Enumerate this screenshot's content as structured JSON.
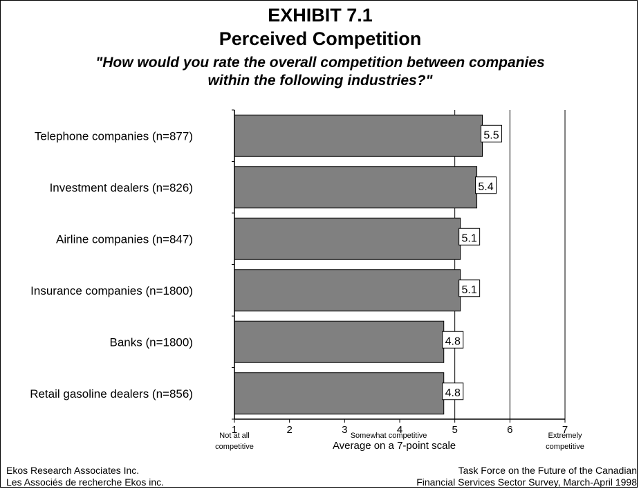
{
  "chart_data": {
    "type": "bar",
    "orientation": "horizontal",
    "title": "EXHIBIT 7.1",
    "subtitle": "Perceived Competition",
    "question_line1": "\"How would you rate the overall competition between companies",
    "question_line2": "within the following industries?\"",
    "categories": [
      "Telephone companies (n=877)",
      "Investment dealers (n=826)",
      "Airline companies (n=847)",
      "Insurance companies (n=1800)",
      "Banks (n=1800)",
      "Retail gasoline dealers (n=856)"
    ],
    "values": [
      5.5,
      5.4,
      5.1,
      5.1,
      4.8,
      4.8
    ],
    "data_labels": [
      "5.5",
      "5.4",
      "5.1",
      "5.1",
      "4.8",
      "4.8"
    ],
    "ticks": [
      "1",
      "2",
      "3",
      "4",
      "5",
      "6",
      "7"
    ],
    "xlim": [
      1,
      7
    ],
    "xlabel": "Average on a 7-point scale",
    "scale_anchors": {
      "low_line1": "Not at all",
      "low_line2": "competitive",
      "mid": "Somewhat competitive",
      "high_line1": "Extremely",
      "high_line2": "competitive"
    },
    "gridlines_at": [
      5,
      6,
      7
    ],
    "bar_color": "#808080",
    "grid": true,
    "legend": "none"
  },
  "footer": {
    "left_line1": "Ekos Research Associates Inc.",
    "left_line2": "Les Associés de recherche Ekos inc.",
    "right_line1": "Task Force on the Future of the Canadian",
    "right_line2": "Financial Services Sector Survey, March-April 1998"
  }
}
